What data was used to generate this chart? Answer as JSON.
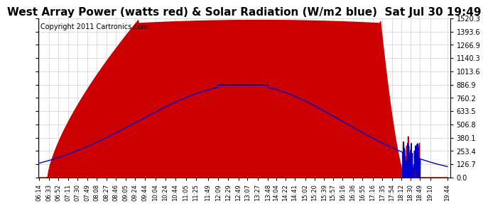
{
  "title": "West Array Power (watts red) & Solar Radiation (W/m2 blue)  Sat Jul 30 19:49",
  "copyright": "Copyright 2011 Cartronics.com",
  "y_max": 1520.3,
  "y_min": 0.0,
  "y_ticks": [
    0.0,
    126.7,
    253.4,
    380.1,
    506.8,
    633.5,
    760.2,
    886.9,
    1013.6,
    1140.3,
    1266.9,
    1393.6,
    1520.3
  ],
  "x_labels": [
    "06:14",
    "06:33",
    "06:52",
    "07:11",
    "07:30",
    "07:49",
    "08:08",
    "08:27",
    "08:46",
    "09:05",
    "09:24",
    "09:44",
    "10:04",
    "10:24",
    "10:44",
    "11:05",
    "11:25",
    "11:49",
    "12:09",
    "12:29",
    "12:49",
    "13:07",
    "13:27",
    "13:48",
    "14:04",
    "14:22",
    "14:41",
    "15:02",
    "15:20",
    "15:39",
    "15:57",
    "16:16",
    "16:36",
    "16:55",
    "17:16",
    "17:35",
    "17:54",
    "18:12",
    "18:30",
    "18:49",
    "19:10",
    "19:44"
  ],
  "background_color": "#ffffff",
  "plot_background": "#ffffff",
  "red_color": "#cc0000",
  "blue_color": "#0000cc",
  "grid_color": "#999999",
  "title_fontsize": 11,
  "copyright_fontsize": 7
}
